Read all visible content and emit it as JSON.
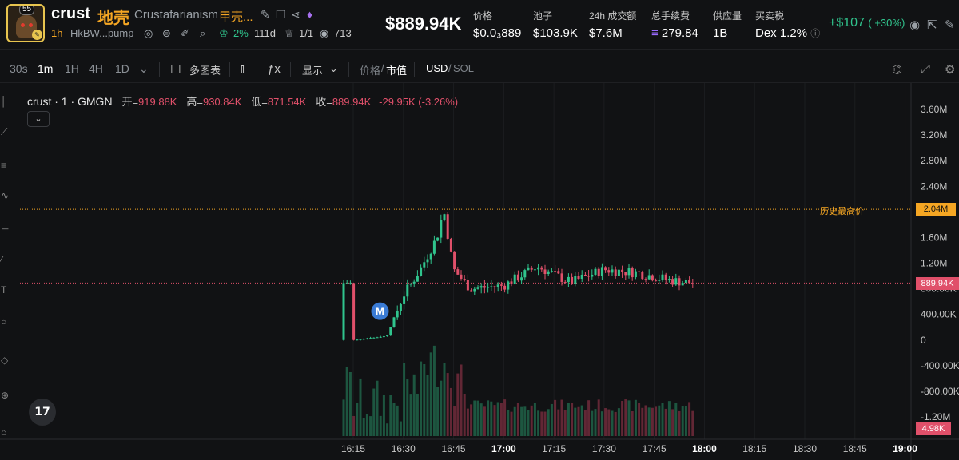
{
  "token": {
    "logo_badge": "55",
    "symbol": "crust",
    "cn_name": "地壳",
    "full_name": "Crustafarianism",
    "cn_full_name": "甲壳...",
    "age": "1h",
    "address": "HkBW...pump",
    "top10_pct": "2%",
    "hold_time": "111d",
    "devs": "1/1",
    "views": "713"
  },
  "header": {
    "price": "$889.94K",
    "stats": [
      {
        "label": "价格",
        "value": "$0.0₃889"
      },
      {
        "label": "池子",
        "value": "$103.9K"
      },
      {
        "label": "24h 成交额",
        "value": "$7.6M"
      },
      {
        "label": "总手续费",
        "value": "279.84"
      },
      {
        "label": "供应量",
        "value": "1B"
      },
      {
        "label": "买卖税",
        "value": "Dex 1.2%"
      }
    ],
    "change": "+$107",
    "change_pct": "( +30%)"
  },
  "toolbar": {
    "timeframes": [
      "30s",
      "1m",
      "1H",
      "4H",
      "1D"
    ],
    "active_timeframe": "1m",
    "multi_chart": "多图表",
    "display": "显示",
    "price_label": "价格",
    "mcap_label": "市值",
    "usd": "USD",
    "sol": "SOL"
  },
  "legend": {
    "name": "crust · 1 · GMGN",
    "open_k": "开=",
    "open_v": "919.88K",
    "high_k": "高=",
    "high_v": "930.84K",
    "low_k": "低=",
    "low_v": "871.54K",
    "close_k": "收=",
    "close_v": "889.94K",
    "change": "-29.95K (-3.26%)",
    "toggle": "⌄"
  },
  "chart_data": {
    "type": "candlestick",
    "title": "crust · 1 · GMGN",
    "y_ticks": [
      "3.60M",
      "3.20M",
      "2.80M",
      "2.40M",
      "1.60M",
      "1.20M",
      "800.00K",
      "400.00K",
      "0",
      "-400.00K",
      "-800.00K",
      "-1.20M"
    ],
    "x_ticks": [
      "16:15",
      "16:30",
      "16:45",
      "17:00",
      "17:15",
      "17:30",
      "17:45",
      "18:00",
      "18:15",
      "18:30",
      "18:45",
      "19:00"
    ],
    "x_ticks_bold": [
      "17:00",
      "18:00",
      "19:00"
    ],
    "ylim": [
      -1400000,
      3800000
    ],
    "ath_label": "历史最高价",
    "ath_value": "2.04M",
    "current_price": "889.94K",
    "volume_tag": "4.98K",
    "marker": "M",
    "series_close_approx": [
      {
        "time": "16:15",
        "value": 0
      },
      {
        "time": "16:25",
        "value": 60000
      },
      {
        "time": "16:30",
        "value": 700000
      },
      {
        "time": "16:35",
        "value": 1100000
      },
      {
        "time": "16:40",
        "value": 1600000
      },
      {
        "time": "16:42",
        "value": 2040000
      },
      {
        "time": "16:45",
        "value": 1100000
      },
      {
        "time": "16:50",
        "value": 800000
      },
      {
        "time": "17:00",
        "value": 850000
      },
      {
        "time": "17:10",
        "value": 1150000
      },
      {
        "time": "17:20",
        "value": 900000
      },
      {
        "time": "17:30",
        "value": 1100000
      },
      {
        "time": "17:40",
        "value": 1050000
      },
      {
        "time": "17:50",
        "value": 930000
      },
      {
        "time": "17:57",
        "value": 889940
      }
    ],
    "colors": {
      "up": "#30c48d",
      "down": "#e0506a",
      "ath": "#f5a623"
    }
  },
  "tv_logo": "17"
}
